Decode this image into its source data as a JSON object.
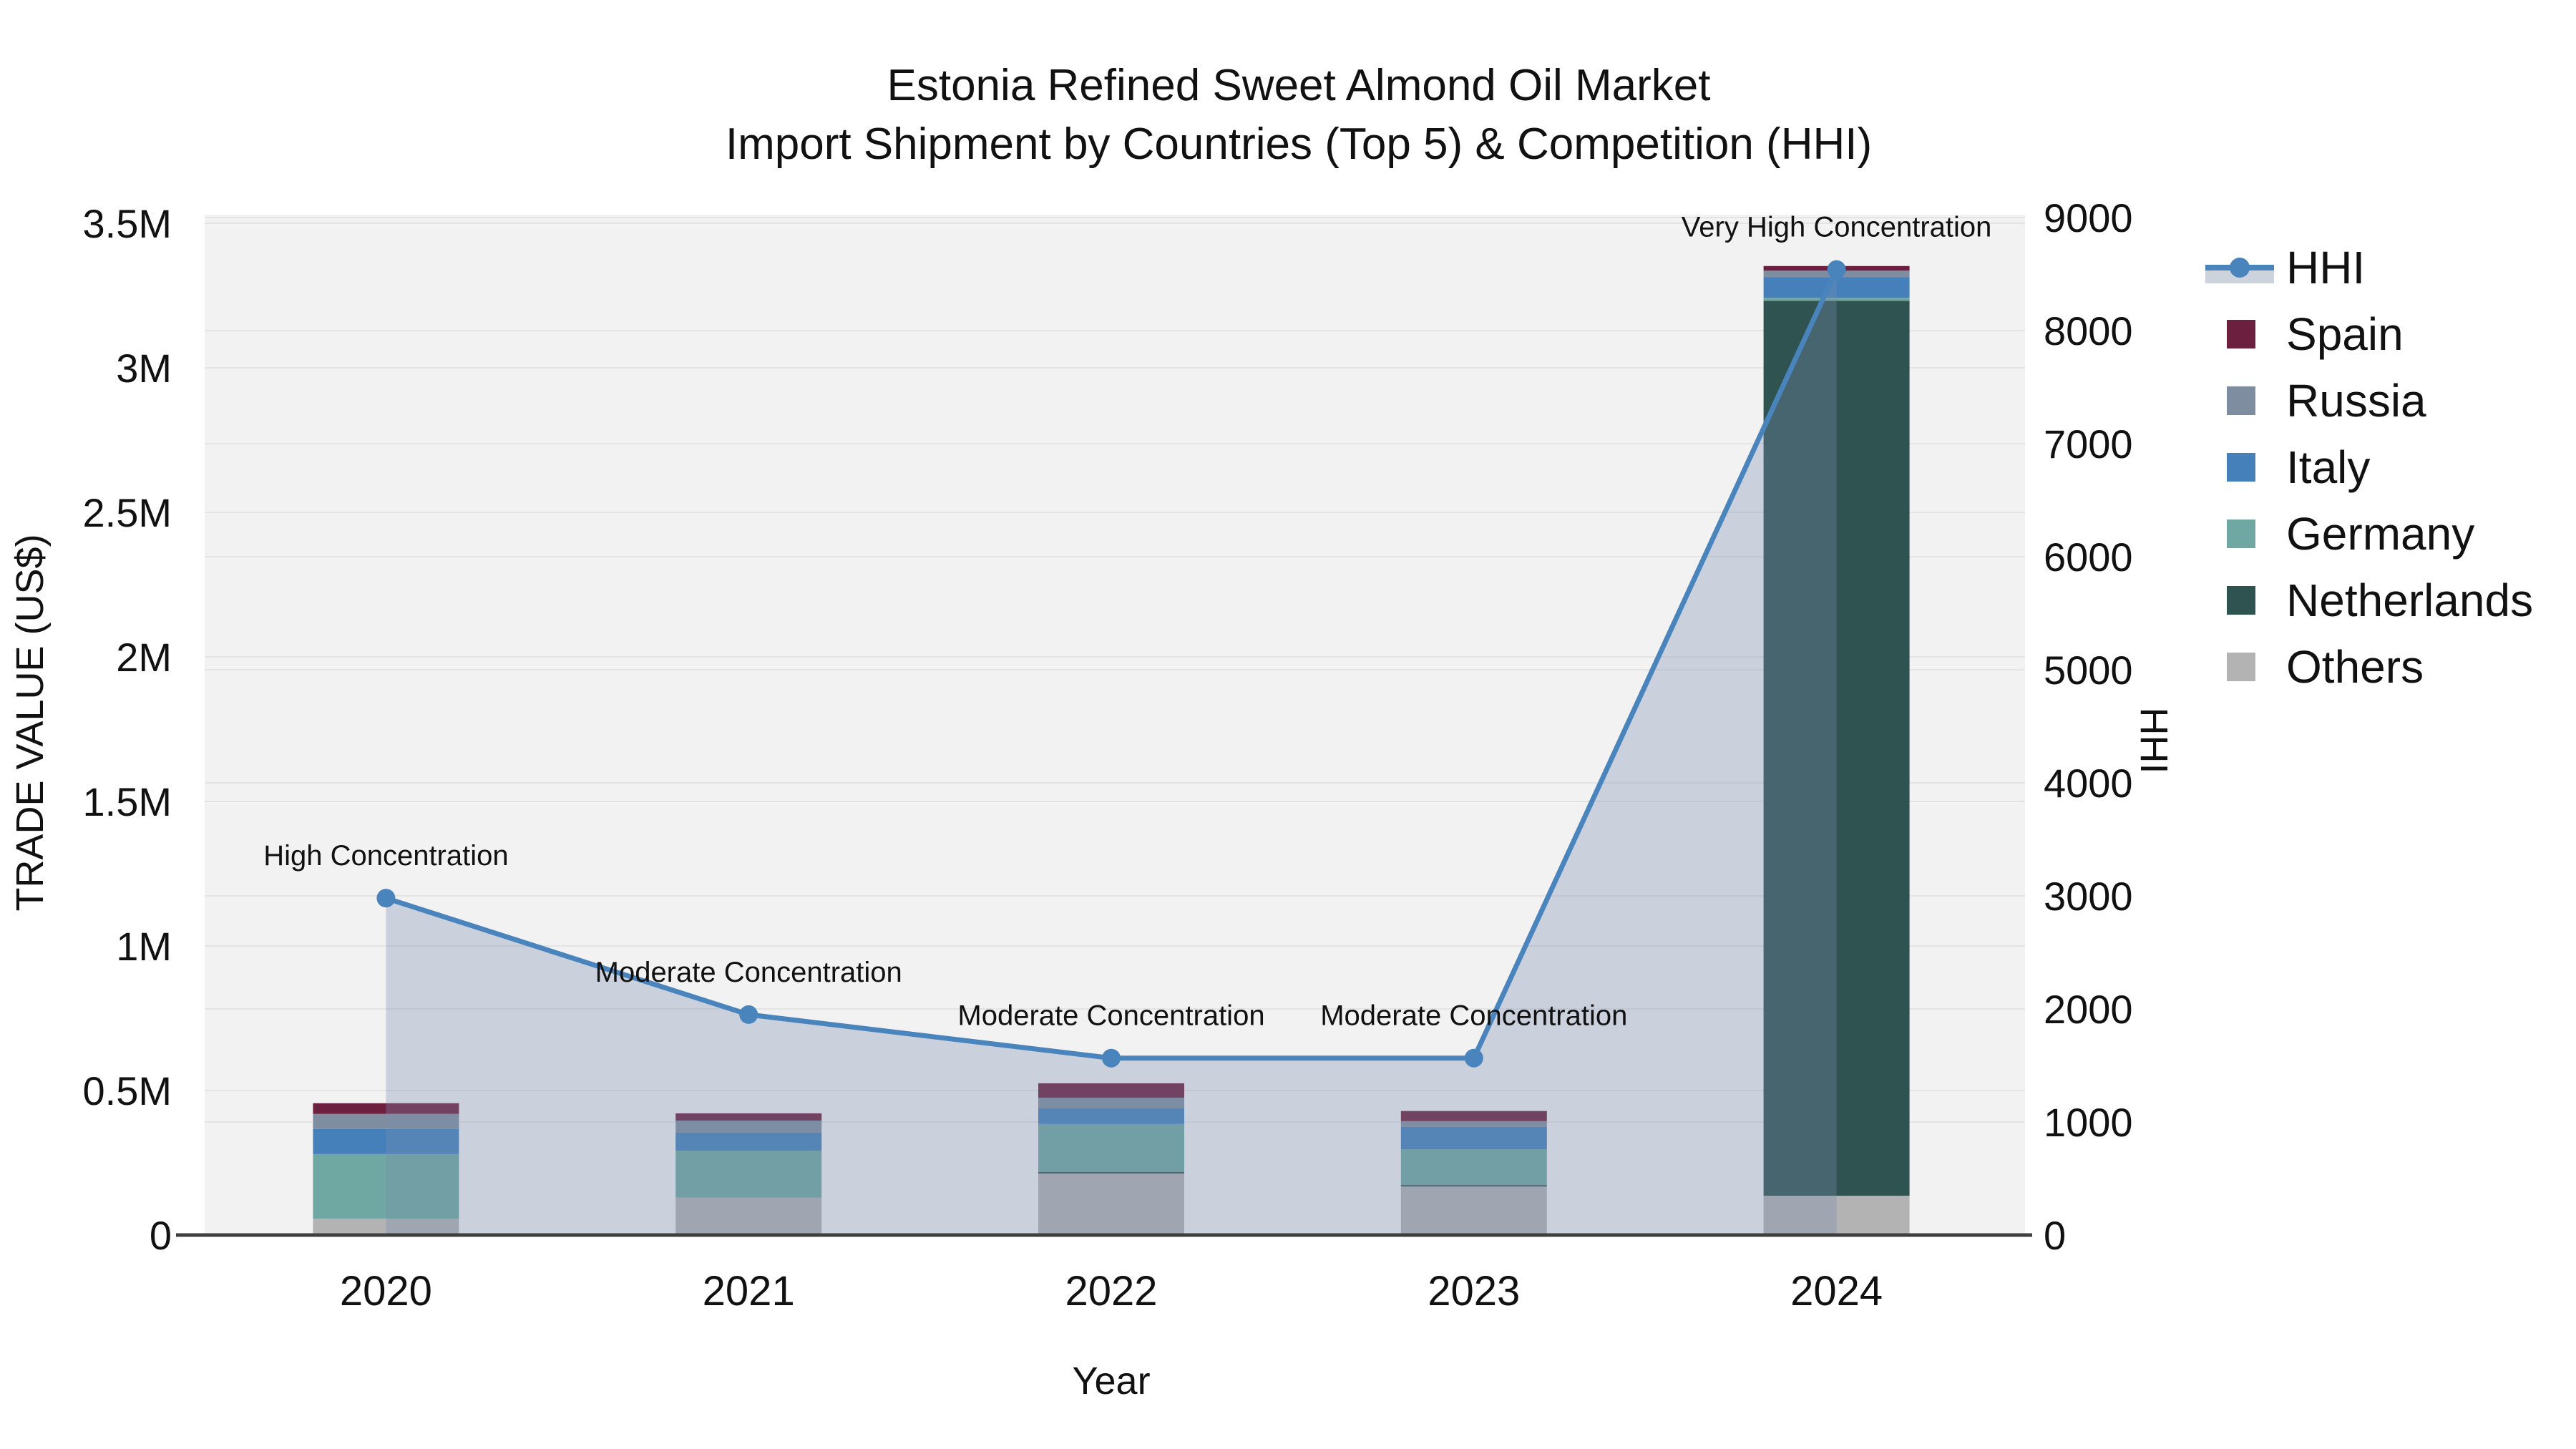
{
  "title": {
    "line1": "Estonia Refined Sweet Almond Oil Market",
    "line2": "Import Shipment by Countries (Top 5) & Competition (HHI)"
  },
  "axes": {
    "x_title": "Year",
    "y_left_title": "TRADE VALUE (US$)",
    "y_right_title": "HHI",
    "y_left_tick_labels": [
      "0",
      "0.5M",
      "1M",
      "1.5M",
      "2M",
      "2.5M",
      "3M",
      "3.5M"
    ],
    "y_left_tick_values": [
      0,
      500000,
      1000000,
      1500000,
      2000000,
      2500000,
      3000000,
      3500000
    ],
    "y_left_max": 3500000,
    "y_right_tick_values": [
      0,
      1000,
      2000,
      3000,
      4000,
      5000,
      6000,
      7000,
      8000,
      9000
    ],
    "y_right_max": 9000
  },
  "chart_data": {
    "type": "combo",
    "subtype": "stacked-bar-with-line",
    "categories": [
      "2020",
      "2021",
      "2022",
      "2023",
      "2024"
    ],
    "bar_value_unit": "US$",
    "stack_order_bottom_to_top": [
      "Others",
      "Netherlands",
      "Germany",
      "Italy",
      "Russia",
      "Spain"
    ],
    "series": [
      {
        "name": "Others",
        "color": "#b3b3b3",
        "values": [
          57000,
          129000,
          213000,
          168000,
          136000
        ]
      },
      {
        "name": "Netherlands",
        "color": "#2f5351",
        "values": [
          0,
          0,
          5000,
          5000,
          3096000
        ]
      },
      {
        "name": "Germany",
        "color": "#6fa7a3",
        "values": [
          223000,
          163000,
          166000,
          124000,
          10000
        ]
      },
      {
        "name": "Italy",
        "color": "#4580bb",
        "values": [
          87000,
          62000,
          54000,
          77000,
          72000
        ]
      },
      {
        "name": "Russia",
        "color": "#7e8ea0",
        "values": [
          52000,
          42000,
          37000,
          20000,
          22000
        ]
      },
      {
        "name": "Spain",
        "color": "#6d1f3f",
        "values": [
          37000,
          25000,
          50000,
          35000,
          16000
        ]
      }
    ],
    "line_series": {
      "name": "HHI",
      "axis": "right",
      "values": [
        2980,
        1950,
        1565,
        1565,
        8540
      ],
      "color": "#4a84bd",
      "area_fill": "rgba(120,140,175,0.32)"
    },
    "annotations": [
      "High Concentration",
      "Moderate Concentration",
      "Moderate Concentration",
      "Moderate Concentration",
      "Very High Concentration"
    ],
    "layout_hints": {
      "plot_background": "#f2f2f2",
      "grid_color": "#e4e4e4",
      "axis_line_color": "#3f3f3f",
      "legend_position": "right",
      "grid_on": true
    }
  },
  "legend": {
    "items": [
      {
        "label": "HHI",
        "type": "line",
        "color": "#4a84bd"
      },
      {
        "label": "Spain",
        "type": "swatch",
        "color": "#6d1f3f"
      },
      {
        "label": "Russia",
        "type": "swatch",
        "color": "#7e8ea0"
      },
      {
        "label": "Italy",
        "type": "swatch",
        "color": "#4580bb"
      },
      {
        "label": "Germany",
        "type": "swatch",
        "color": "#6fa7a3"
      },
      {
        "label": "Netherlands",
        "type": "swatch",
        "color": "#2f5351"
      },
      {
        "label": "Others",
        "type": "swatch",
        "color": "#b3b3b3"
      }
    ]
  }
}
